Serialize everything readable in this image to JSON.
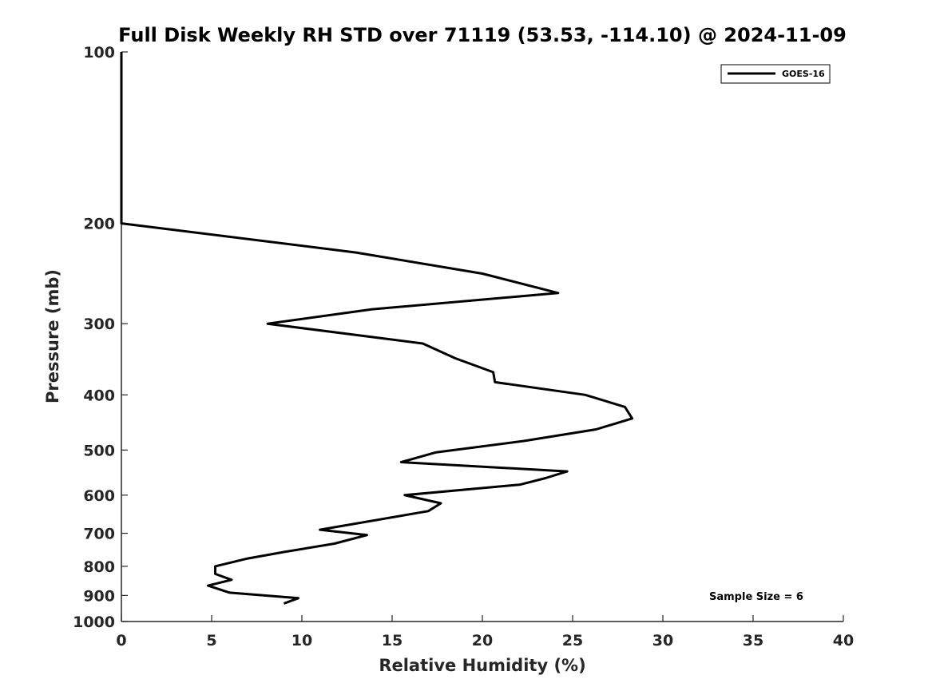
{
  "chart_data": {
    "type": "line",
    "title": "Full Disk Weekly RH STD over 71119 (53.53, -114.10) @ 2024-11-09",
    "xlabel": "Relative Humidity (%)",
    "ylabel": "Pressure (mb)",
    "xlim": [
      0,
      40
    ],
    "ylim": [
      100,
      1000
    ],
    "y_scale": "log",
    "y_reversed": true,
    "x_ticks": [
      0,
      5,
      10,
      15,
      20,
      25,
      30,
      35,
      40
    ],
    "y_ticks": [
      100,
      200,
      300,
      400,
      500,
      600,
      700,
      800,
      900,
      1000
    ],
    "grid": false,
    "legend_position": "top-right",
    "annotation": "Sample Size = 6",
    "series": [
      {
        "name": "GOES-16",
        "color": "#000000",
        "points": [
          {
            "x": 0.0,
            "y": 100
          },
          {
            "x": 0.0,
            "y": 150
          },
          {
            "x": 0.0,
            "y": 200
          },
          {
            "x": 13.0,
            "y": 225
          },
          {
            "x": 20.0,
            "y": 245
          },
          {
            "x": 24.2,
            "y": 265
          },
          {
            "x": 13.9,
            "y": 283
          },
          {
            "x": 8.1,
            "y": 300
          },
          {
            "x": 16.7,
            "y": 325
          },
          {
            "x": 18.5,
            "y": 345
          },
          {
            "x": 20.6,
            "y": 365
          },
          {
            "x": 20.7,
            "y": 380
          },
          {
            "x": 25.7,
            "y": 400
          },
          {
            "x": 27.9,
            "y": 420
          },
          {
            "x": 28.3,
            "y": 440
          },
          {
            "x": 26.3,
            "y": 460
          },
          {
            "x": 22.3,
            "y": 482
          },
          {
            "x": 17.4,
            "y": 505
          },
          {
            "x": 15.5,
            "y": 525
          },
          {
            "x": 24.7,
            "y": 545
          },
          {
            "x": 23.5,
            "y": 560
          },
          {
            "x": 22.1,
            "y": 575
          },
          {
            "x": 15.7,
            "y": 600
          },
          {
            "x": 17.7,
            "y": 620
          },
          {
            "x": 17.0,
            "y": 640
          },
          {
            "x": 11.0,
            "y": 690
          },
          {
            "x": 13.6,
            "y": 705
          },
          {
            "x": 11.8,
            "y": 730
          },
          {
            "x": 9.0,
            "y": 755
          },
          {
            "x": 7.0,
            "y": 775
          },
          {
            "x": 5.2,
            "y": 800
          },
          {
            "x": 5.2,
            "y": 825
          },
          {
            "x": 6.1,
            "y": 845
          },
          {
            "x": 4.8,
            "y": 865
          },
          {
            "x": 6.0,
            "y": 890
          },
          {
            "x": 9.8,
            "y": 910
          },
          {
            "x": 9.0,
            "y": 930
          }
        ]
      }
    ]
  }
}
